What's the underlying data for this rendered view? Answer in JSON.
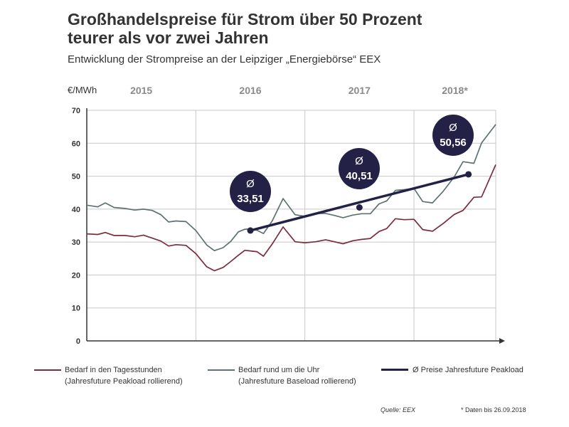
{
  "header": {
    "title_line1": "Großhandelspreise für Strom über 50 Prozent",
    "title_line2": "teurer als vor zwei Jahren",
    "subtitle": "Entwicklung der Strompreise an der Leipziger „Energiebörse“ EEX"
  },
  "colors": {
    "peak": "#7b2d3e",
    "base": "#5f7173",
    "average": "#232246",
    "bubble_text": "#ffffff",
    "grid": "#c8c8c8",
    "axis": "#333333"
  },
  "chart_data": {
    "type": "line",
    "title": "Großhandelspreise für Strom über 50 Prozent teurer als vor zwei Jahren",
    "subtitle": "Entwicklung der Strompreise an der Leipziger „Energiebörse“ EEX",
    "ylabel": "€/MWh",
    "xlabel": "",
    "ylim": [
      0,
      70
    ],
    "yticks": [
      0,
      10,
      20,
      30,
      40,
      50,
      60,
      70
    ],
    "xlim": [
      2015,
      2018.75
    ],
    "years": [
      {
        "label": "2015",
        "start": 2015,
        "end": 2016
      },
      {
        "label": "2016",
        "start": 2016,
        "end": 2017
      },
      {
        "label": "2017",
        "start": 2017,
        "end": 2018
      },
      {
        "label": "2018*",
        "start": 2018,
        "end": 2018.75
      }
    ],
    "grid": true,
    "series": [
      {
        "name": "Bedarf rund um die Uhr (Jahresfuture Baseload rollierend)",
        "color_key": "base",
        "x": [
          2015.0,
          2015.1,
          2015.17,
          2015.25,
          2015.35,
          2015.44,
          2015.52,
          2015.6,
          2015.68,
          2015.75,
          2015.82,
          2015.91,
          2016.0,
          2016.1,
          2016.17,
          2016.25,
          2016.32,
          2016.39,
          2016.45,
          2016.5,
          2016.56,
          2016.62,
          2016.7,
          2016.8,
          2016.91,
          2017.0,
          2017.1,
          2017.19,
          2017.27,
          2017.35,
          2017.44,
          2017.52,
          2017.6,
          2017.68,
          2017.75,
          2017.83,
          2017.91,
          2018.0,
          2018.08,
          2018.17,
          2018.27,
          2018.37,
          2018.45,
          2018.55,
          2018.62,
          2018.75
        ],
        "values": [
          41.2,
          40.7,
          41.9,
          40.5,
          40.2,
          39.7,
          40.0,
          39.6,
          38.3,
          36.1,
          36.4,
          36.2,
          33.5,
          29.1,
          27.4,
          28.3,
          30.2,
          33.1,
          33.9,
          34.0,
          33.6,
          32.6,
          36.4,
          43.2,
          38.3,
          37.8,
          38.7,
          38.7,
          38.1,
          37.4,
          38.2,
          38.6,
          38.6,
          41.6,
          42.5,
          45.7,
          45.9,
          46.3,
          42.3,
          41.9,
          45.5,
          49.8,
          54.4,
          53.9,
          60.1,
          65.7
        ]
      },
      {
        "name": "Bedarf in den Tagesstunden (Jahresfuture Peakload rollierend)",
        "color_key": "peak",
        "x": [
          2015.0,
          2015.1,
          2015.17,
          2015.25,
          2015.35,
          2015.44,
          2015.52,
          2015.6,
          2015.68,
          2015.75,
          2015.82,
          2015.91,
          2016.0,
          2016.1,
          2016.17,
          2016.25,
          2016.32,
          2016.39,
          2016.45,
          2016.5,
          2016.56,
          2016.62,
          2016.7,
          2016.8,
          2016.91,
          2017.0,
          2017.1,
          2017.19,
          2017.27,
          2017.35,
          2017.44,
          2017.52,
          2017.6,
          2017.68,
          2017.75,
          2017.83,
          2017.91,
          2018.0,
          2018.08,
          2018.17,
          2018.27,
          2018.37,
          2018.45,
          2018.55,
          2018.62,
          2018.75
        ],
        "values": [
          32.5,
          32.3,
          32.9,
          32.0,
          32.0,
          31.6,
          32.1,
          31.2,
          30.3,
          28.8,
          29.2,
          29.0,
          26.5,
          22.5,
          21.3,
          22.3,
          24.1,
          26.0,
          27.5,
          27.3,
          27.1,
          25.7,
          29.4,
          34.6,
          30.1,
          29.8,
          30.1,
          30.7,
          30.1,
          29.5,
          30.4,
          30.8,
          31.1,
          33.2,
          34.1,
          37.1,
          36.8,
          36.9,
          33.8,
          33.3,
          35.7,
          38.4,
          39.6,
          43.6,
          43.7,
          53.5
        ]
      },
      {
        "name": "Ø Preise Jahresfuture Peakload",
        "color_key": "average",
        "x": [
          2016.5,
          2017.5,
          2018.5
        ],
        "values": [
          33.51,
          40.51,
          50.56
        ],
        "labels": [
          "Ø\n33,51",
          "Ø\n40,51",
          "Ø\n50,56"
        ],
        "label_offsets_months": [
          -0.23,
          -0.05,
          -0.03
        ],
        "label_offsets_value": [
          15.5,
          13.0,
          13.5
        ]
      }
    ],
    "bubbles": [
      {
        "symbol": "Ø",
        "value_text": "33,51"
      },
      {
        "symbol": "Ø",
        "value_text": "40,51"
      },
      {
        "symbol": "Ø",
        "value_text": "50,56"
      }
    ]
  },
  "legend": {
    "peak_line1": "Bedarf in den Tagesstunden",
    "peak_line2": "(Jahresfuture Peakload rollierend)",
    "base_line1": "Bedarf rund um die Uhr",
    "base_line2": "(Jahresfuture Baseload rollierend)",
    "avg_label": "Ø Preise Jahresfuture Peakload"
  },
  "footer": {
    "source": "Quelle: EEX",
    "note": "* Daten bis 26.09.2018"
  }
}
